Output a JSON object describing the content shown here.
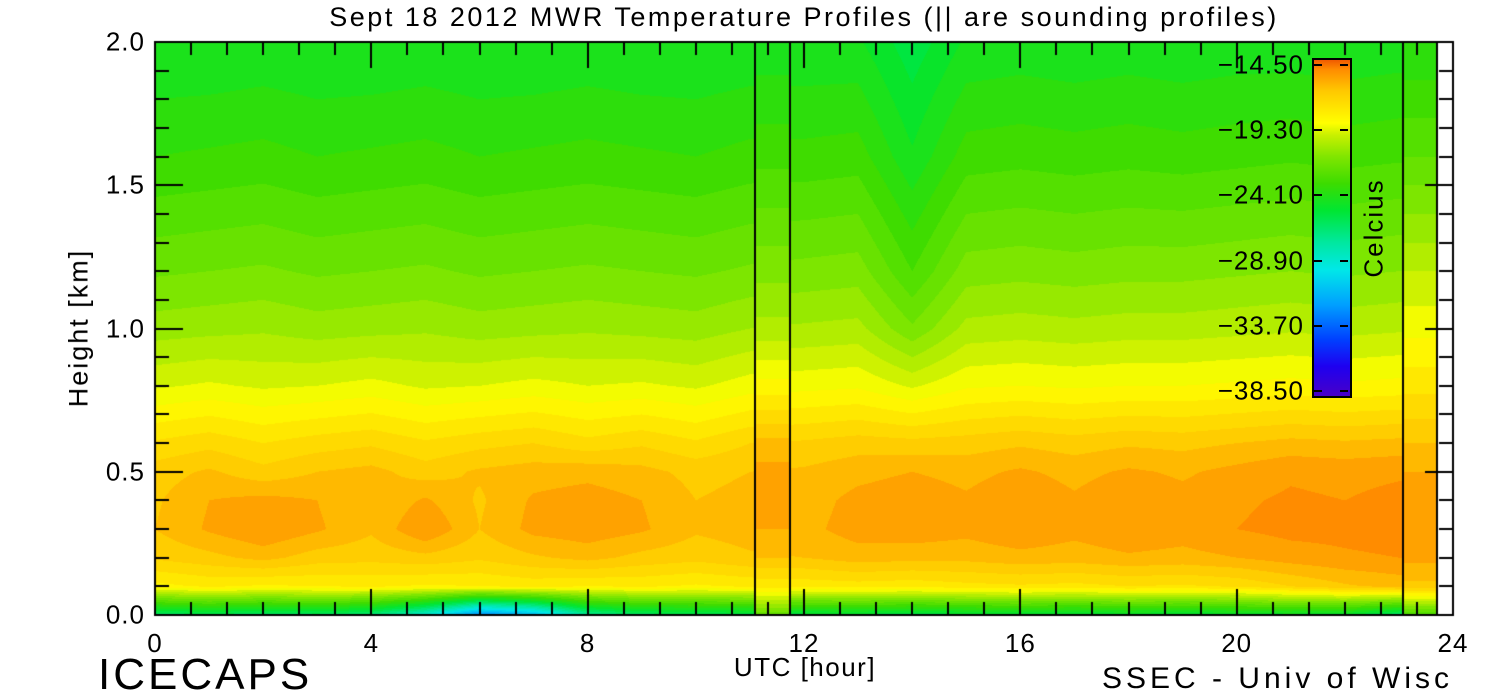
{
  "title": "Sept 18 2012 MWR Temperature Profiles (|| are sounding profiles)",
  "footer": {
    "left": "ICECAPS",
    "right": "SSEC - Univ of Wisc"
  },
  "axes": {
    "x": {
      "label": "UTC [hour]",
      "min": 0,
      "max": 24,
      "major_ticks": [
        0,
        4,
        8,
        12,
        16,
        20,
        24
      ],
      "major_tick_labels": [
        "0",
        "4",
        "8",
        "12",
        "16",
        "20",
        "24"
      ],
      "minors_per_major": 6
    },
    "y": {
      "label": "Height [km]",
      "min": 0,
      "max": 2,
      "major_ticks": [
        0.0,
        0.5,
        1.0,
        1.5,
        2.0
      ],
      "major_tick_labels": [
        "0.0",
        "0.5",
        "1.0",
        "1.5",
        "2.0"
      ],
      "minor_step": 0.1
    }
  },
  "colorbar": {
    "title": "Celcius",
    "labels": [
      "−14.50",
      "−19.30",
      "−24.10",
      "−28.90",
      "−33.70",
      "−38.50"
    ],
    "label_values": [
      -14.5,
      -19.3,
      -24.1,
      -28.9,
      -33.7,
      -38.5
    ],
    "top_value": -14.0,
    "bottom_value": -39.0,
    "stops": [
      [
        -39.2,
        "#4800C8"
      ],
      [
        -36.8,
        "#1E00F0"
      ],
      [
        -34.8,
        "#0040FF"
      ],
      [
        -32.2,
        "#00A0FF"
      ],
      [
        -29.6,
        "#00E8E8"
      ],
      [
        -27.6,
        "#00E8A0"
      ],
      [
        -25.2,
        "#00E632"
      ],
      [
        -23.2,
        "#3CDC00"
      ],
      [
        -21.2,
        "#80E600"
      ],
      [
        -19.6,
        "#C8F000"
      ],
      [
        -18.7,
        "#FFFF00"
      ],
      [
        -17.4,
        "#FFE100"
      ],
      [
        -16.3,
        "#FFC800"
      ],
      [
        -15.4,
        "#FFA600"
      ],
      [
        -14.7,
        "#FF8C00"
      ],
      [
        -13.9,
        "#F05A00"
      ]
    ]
  },
  "chart_data": {
    "type": "heatmap",
    "title": "Sept 18 2012 MWR Temperature Profiles (|| are sounding profiles)",
    "xlabel": "UTC [hour]",
    "ylabel": "Height [km]",
    "units": "Celcius",
    "xlim": [
      0,
      24
    ],
    "ylim": [
      0,
      2
    ],
    "contour_interval": 0.6,
    "data_end_hour": 23.7,
    "x_hours": [
      0,
      1,
      2,
      3,
      4,
      5,
      6,
      7,
      8,
      9,
      10,
      11,
      12,
      13,
      14,
      15,
      16,
      17,
      18,
      19,
      20,
      21,
      22,
      23,
      24
    ],
    "heights_km": [
      2.0,
      1.6,
      1.2,
      1.0,
      0.8,
      0.6,
      0.5,
      0.4,
      0.3,
      0.2,
      0.1,
      0.0
    ],
    "grid_temps_c": [
      [
        -24.6,
        -24.6,
        -24.5,
        -24.6,
        -24.6,
        -24.5,
        -24.6,
        -24.6,
        -24.5,
        -24.6,
        -24.6,
        -24.5,
        -24.5,
        -24.5,
        -25.6,
        -24.5,
        -24.4,
        -24.5,
        -24.4,
        -24.5,
        -24.4,
        -24.4,
        -24.5,
        -24.4,
        -24.4
      ],
      [
        -23.4,
        -23.3,
        -23.2,
        -23.4,
        -23.3,
        -23.2,
        -23.4,
        -23.3,
        -23.2,
        -23.3,
        -23.4,
        -23.2,
        -23.2,
        -23.1,
        -24.5,
        -23.1,
        -23.0,
        -23.1,
        -23.0,
        -23.1,
        -23.0,
        -22.9,
        -23.0,
        -22.9,
        -22.9
      ],
      [
        -21.7,
        -21.6,
        -21.5,
        -21.7,
        -21.6,
        -21.5,
        -21.7,
        -21.6,
        -21.5,
        -21.6,
        -21.7,
        -21.5,
        -21.4,
        -21.3,
        -22.8,
        -21.3,
        -21.2,
        -21.3,
        -21.2,
        -21.2,
        -21.1,
        -21.0,
        -21.1,
        -21.0,
        -21.0
      ],
      [
        -20.7,
        -20.6,
        -20.5,
        -20.7,
        -20.6,
        -20.5,
        -20.7,
        -20.6,
        -20.5,
        -20.6,
        -20.7,
        -20.4,
        -20.3,
        -20.2,
        -21.5,
        -20.2,
        -20.1,
        -20.2,
        -20.1,
        -20.1,
        -20.0,
        -19.9,
        -20.0,
        -19.9,
        -19.9
      ],
      [
        -19.3,
        -19.1,
        -19.3,
        -19.2,
        -19.0,
        -19.3,
        -19.2,
        -19.0,
        -19.2,
        -19.1,
        -19.3,
        -18.9,
        -18.8,
        -18.7,
        -19.3,
        -18.7,
        -18.6,
        -18.7,
        -18.6,
        -18.6,
        -18.5,
        -18.4,
        -18.5,
        -18.4,
        -18.4
      ],
      [
        -17.3,
        -17.0,
        -17.4,
        -17.1,
        -16.9,
        -17.3,
        -17.0,
        -16.8,
        -17.2,
        -16.9,
        -17.3,
        -16.8,
        -16.7,
        -16.5,
        -16.6,
        -16.5,
        -16.3,
        -16.5,
        -16.3,
        -16.4,
        -16.2,
        -16.0,
        -16.1,
        -16.0,
        -16.0
      ],
      [
        -16.5,
        -16.1,
        -16.6,
        -16.2,
        -16.0,
        -16.5,
        -16.1,
        -15.9,
        -15.8,
        -16.0,
        -16.4,
        -16.2,
        -16.1,
        -15.8,
        -15.6,
        -15.8,
        -15.5,
        -15.8,
        -15.5,
        -15.7,
        -15.4,
        -15.1,
        -15.2,
        -15.1,
        -15.1
      ],
      [
        -16.3,
        -15.6,
        -15.4,
        -15.6,
        -16.2,
        -15.5,
        -16.3,
        -15.5,
        -15.3,
        -15.6,
        -16.2,
        -16.0,
        -15.9,
        -15.4,
        -15.2,
        -15.5,
        -15.1,
        -15.5,
        -15.1,
        -15.4,
        -15.1,
        -14.9,
        -15.0,
        -14.8,
        -14.8
      ],
      [
        -16.2,
        -15.5,
        -15.0,
        -15.5,
        -16.1,
        -15.0,
        -16.2,
        -15.4,
        -15.2,
        -15.5,
        -16.1,
        -15.9,
        -15.8,
        -15.3,
        -15.2,
        -15.4,
        -15.1,
        -15.4,
        -15.1,
        -15.3,
        -15.0,
        -14.8,
        -14.8,
        -14.7,
        -14.7
      ],
      [
        -16.7,
        -16.4,
        -16.0,
        -16.5,
        -16.6,
        -16.4,
        -16.7,
        -16.3,
        -16.0,
        -16.4,
        -16.6,
        -16.3,
        -16.2,
        -15.9,
        -16.0,
        -16.0,
        -15.8,
        -15.9,
        -15.7,
        -15.8,
        -15.6,
        -15.3,
        -15.1,
        -15.0,
        -15.0
      ],
      [
        -18.2,
        -17.9,
        -18.1,
        -18.0,
        -17.9,
        -18.1,
        -18.0,
        -17.8,
        -18.0,
        -17.9,
        -18.1,
        -17.9,
        -17.8,
        -17.7,
        -17.8,
        -17.6,
        -17.5,
        -17.6,
        -17.4,
        -17.5,
        -17.3,
        -16.8,
        -16.3,
        -16.0,
        -16.0
      ],
      [
        -26.5,
        -26.0,
        -26.5,
        -26.2,
        -26.8,
        -29.0,
        -33.0,
        -31.5,
        -27.5,
        -26.3,
        -26.0,
        -25.8,
        -25.6,
        -25.5,
        -25.8,
        -25.5,
        -25.3,
        -25.5,
        -25.2,
        -25.4,
        -25.2,
        -25.0,
        -25.2,
        -26.5,
        -26.5
      ]
    ],
    "sounding_profiles": [
      {
        "from_hour": 11.1,
        "to_hour": 11.74,
        "temps_c": [
          -24.4,
          -23.0,
          -21.2,
          -20.2,
          -18.4,
          -16.0,
          -15.4,
          -15.3,
          -15.6,
          -16.2,
          -17.8,
          -22.0
        ]
      },
      {
        "from_hour": 23.08,
        "to_hour": 23.7,
        "temps_c": [
          -24.0,
          -22.2,
          -19.8,
          -18.8,
          -17.6,
          -16.2,
          -15.6,
          -15.3,
          -15.2,
          -15.4,
          -16.4,
          -23.0
        ]
      }
    ],
    "sounding_line_hours": [
      11.1,
      11.74,
      23.08,
      23.7
    ]
  }
}
